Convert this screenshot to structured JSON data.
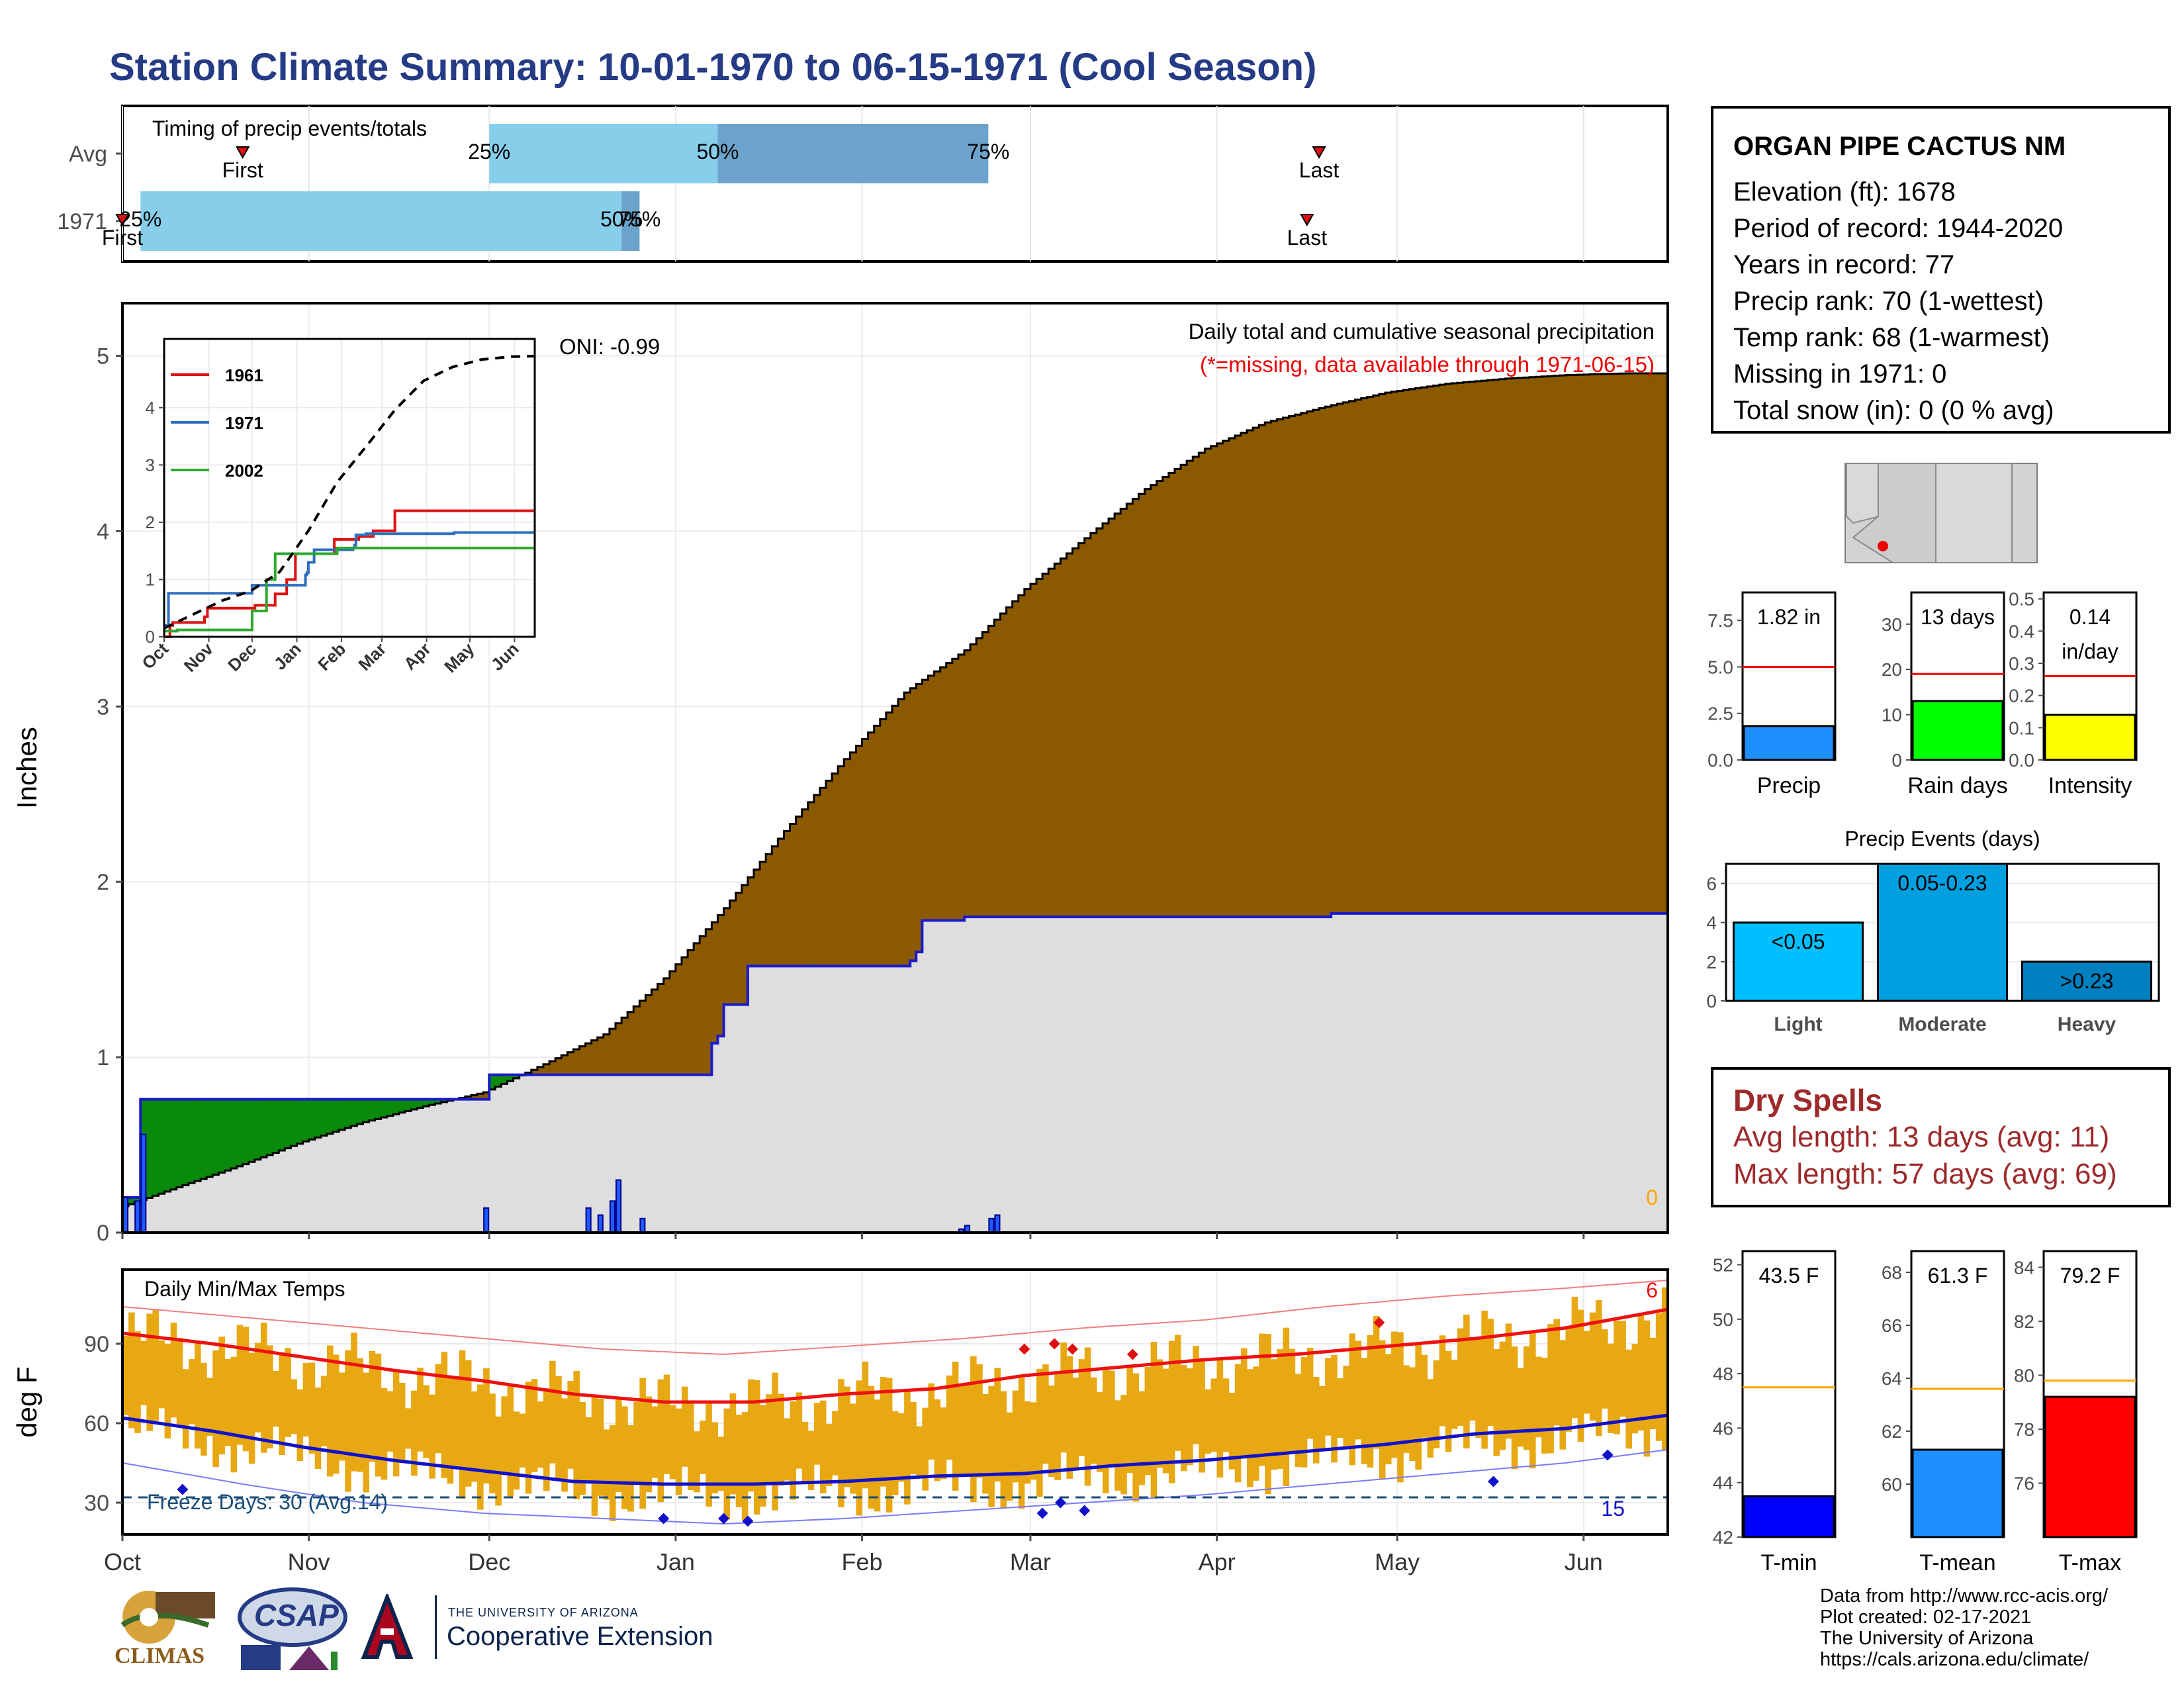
{
  "title": "Station Climate Summary: 10-01-1970 to 06-15-1971 (Cool Season)",
  "station": {
    "name": "ORGAN PIPE CACTUS NM",
    "lines": [
      "Elevation (ft): 1678",
      "Period of record: 1944-2020",
      "Years in record: 77",
      "Precip rank: 70 (1-wettest)",
      "Temp rank: 68 (1-warmest)",
      "Missing in 1971: 0",
      "Total snow (in): 0 (0 % avg)"
    ]
  },
  "dry_spells": {
    "heading": "Dry Spells",
    "avg_line": "Avg length: 13 days (avg: 11)",
    "max_line": "Max length: 57 days (avg: 69)"
  },
  "credits": [
    "Data from http://www.rcc-acis.org/",
    "Plot created: 02-17-2021",
    "The University of Arizona",
    "https://cals.arizona.edu/climate/"
  ],
  "logos": {
    "climas": "CLIMAS",
    "csap": "CSAP",
    "ua_small": "THE UNIVERSITY OF ARIZONA",
    "ua_big": "Cooperative Extension"
  },
  "colors": {
    "title": "#253b85",
    "cumulative_avg": "#8b5a00",
    "cumulative_obs": "#1a1acc",
    "deficit_green": "#0a8a0a",
    "temp_bars": "#e8a813",
    "dry_spells": "#9e2a2b",
    "timing_light": "#87ceeb",
    "timing_dark": "#6ba3cc"
  },
  "chart_data": [
    {
      "type": "bar",
      "title": "Timing of precip events/totals",
      "rows": [
        {
          "label": "Avg",
          "first": "10-21",
          "p25": "12-01",
          "p50": "01-08",
          "p75": "02-22",
          "last": "04-18",
          "marker_labels": [
            "First",
            "25%",
            "50%",
            "75%",
            "Last"
          ]
        },
        {
          "label": "1971",
          "first": "10-01",
          "p25": "10-04",
          "p50": "12-23",
          "p75": "12-26",
          "last": "04-16",
          "marker_labels": [
            "First",
            "25%",
            "50%",
            "75%",
            "Last"
          ]
        }
      ]
    },
    {
      "type": "area",
      "title": "Daily total and cumulative seasonal precipitation",
      "subtitle": "(*=missing, data available through 1971-06-15)",
      "annotation": "ONI: -0.99",
      "end_label": "0",
      "ylabel": "Inches",
      "ylim": [
        0,
        5.3
      ],
      "yticks": [
        0,
        1,
        2,
        3,
        4,
        5
      ],
      "x_ticks": [
        "Oct",
        "Nov",
        "Dec",
        "Jan",
        "Feb",
        "Mar",
        "Apr",
        "May",
        "Jun"
      ],
      "average_cumulative": {
        "days": [
          0,
          10,
          20,
          30,
          40,
          50,
          60,
          70,
          80,
          90,
          100,
          110,
          120,
          130,
          140,
          150,
          160,
          170,
          180,
          190,
          200,
          210,
          220,
          230,
          240,
          250,
          257
        ],
        "inches": [
          0.15,
          0.27,
          0.39,
          0.52,
          0.63,
          0.72,
          0.8,
          0.96,
          1.13,
          1.45,
          1.85,
          2.29,
          2.7,
          3.08,
          3.32,
          3.67,
          3.96,
          4.24,
          4.47,
          4.62,
          4.71,
          4.79,
          4.84,
          4.87,
          4.89,
          4.9,
          4.9
        ]
      },
      "observed_cumulative": {
        "days": [
          0,
          2,
          3,
          60,
          61,
          81,
          82,
          97,
          98,
          99,
          100,
          103,
          104,
          104,
          125,
          130,
          131,
          132,
          133,
          139,
          140,
          150,
          180,
          200,
          201,
          257
        ],
        "inches": [
          0.2,
          0.2,
          0.76,
          0.76,
          0.9,
          0.9,
          0.9,
          0.9,
          1.08,
          1.12,
          1.3,
          1.3,
          1.42,
          1.52,
          1.52,
          1.52,
          1.55,
          1.6,
          1.78,
          1.78,
          1.8,
          1.8,
          1.8,
          1.8,
          1.82,
          1.82
        ]
      },
      "daily_precip": {
        "days": [
          0,
          2,
          3,
          60,
          77,
          79,
          81,
          82,
          86,
          139,
          140,
          144,
          145
        ],
        "inches": [
          0.2,
          0.18,
          0.56,
          0.14,
          0.14,
          0.1,
          0.18,
          0.3,
          0.08,
          0.02,
          0.04,
          0.08,
          0.1
        ]
      }
    },
    {
      "type": "line",
      "title": "",
      "xlabel": "",
      "ylabel": "",
      "ylim": [
        0,
        5.2
      ],
      "yticks": [
        0,
        1,
        2,
        3,
        4
      ],
      "x_ticks": [
        "Oct",
        "Nov",
        "Dec",
        "Jan",
        "Feb",
        "Mar",
        "Apr",
        "May",
        "Jun"
      ],
      "series": [
        {
          "name": "1961",
          "color": "#dd1111",
          "days": [
            0,
            4,
            6,
            25,
            28,
            30,
            62,
            63,
            71,
            76,
            77,
            83,
            85,
            90,
            91,
            115,
            118,
            132,
            135,
            140,
            145,
            158,
            160,
            200,
            257
          ],
          "inches": [
            0.0,
            0.2,
            0.25,
            0.25,
            0.35,
            0.5,
            0.5,
            0.55,
            0.55,
            0.55,
            0.75,
            0.75,
            1.0,
            1.0,
            1.45,
            1.45,
            1.7,
            1.7,
            1.75,
            1.75,
            1.85,
            1.85,
            2.2,
            2.2,
            2.2
          ]
        },
        {
          "name": "1971",
          "color": "#2f6fbf",
          "days": [
            0,
            2,
            3,
            60,
            61,
            81,
            82,
            97,
            98,
            99,
            100,
            103,
            104,
            104,
            125,
            130,
            131,
            132,
            133,
            139,
            140,
            150,
            200,
            201,
            257
          ],
          "inches": [
            0.2,
            0.2,
            0.76,
            0.76,
            0.9,
            0.9,
            0.9,
            0.9,
            1.08,
            1.12,
            1.3,
            1.3,
            1.42,
            1.52,
            1.52,
            1.52,
            1.55,
            1.6,
            1.78,
            1.78,
            1.8,
            1.8,
            1.8,
            1.82,
            1.82
          ]
        },
        {
          "name": "2002",
          "color": "#2ea82e",
          "days": [
            0,
            8,
            9,
            60,
            61,
            70,
            71,
            75,
            77,
            90,
            120,
            160,
            257
          ],
          "inches": [
            0.1,
            0.1,
            0.12,
            0.12,
            0.45,
            0.45,
            1.0,
            1.0,
            1.45,
            1.45,
            1.55,
            1.55,
            1.55
          ]
        },
        {
          "name": "average",
          "color": "#000000",
          "days": [
            0,
            20,
            40,
            60,
            80,
            100,
            120,
            140,
            160,
            180,
            200,
            220,
            240,
            257
          ],
          "inches": [
            0.15,
            0.39,
            0.63,
            0.8,
            1.13,
            1.85,
            2.7,
            3.32,
            3.96,
            4.47,
            4.71,
            4.84,
            4.89,
            4.9
          ]
        }
      ]
    },
    {
      "type": "bar",
      "title": "",
      "unit_label": "1.82 in",
      "xlabel": "Precip",
      "ylim": [
        0,
        9
      ],
      "yticks": [
        "0.0",
        "2.5",
        "5.0",
        "7.5"
      ],
      "value": 1.82,
      "avg": 5.0
    },
    {
      "type": "bar",
      "unit_label": "13 days",
      "xlabel": "Rain days",
      "ylim": [
        0,
        37
      ],
      "yticks": [
        "0",
        "10",
        "20",
        "30"
      ],
      "value": 13,
      "avg": 19
    },
    {
      "type": "bar",
      "unit_label": "0.14",
      "unit_label_2": "in/day",
      "xlabel": "Intensity",
      "ylim": [
        0,
        0.52
      ],
      "yticks": [
        "0.0",
        "0.1",
        "0.2",
        "0.3",
        "0.4",
        "0.5"
      ],
      "value": 0.14,
      "avg": 0.26
    },
    {
      "type": "bar",
      "title": "Precip Events (days)",
      "categories": [
        "Light",
        "Moderate",
        "Heavy"
      ],
      "bar_labels": [
        "<0.05",
        "0.05-0.23",
        ">0.23"
      ],
      "values": [
        4,
        7,
        2
      ],
      "ylim": [
        0,
        7
      ],
      "yticks": [
        "0",
        "2",
        "4",
        "6"
      ]
    },
    {
      "type": "line",
      "title": "Daily Min/Max Temps",
      "ylabel": "deg F",
      "ylim": [
        18,
        118
      ],
      "yticks": [
        30,
        60,
        90
      ],
      "x_ticks": [
        "Oct",
        "Nov",
        "Dec",
        "Jan",
        "Feb",
        "Mar",
        "Apr",
        "May",
        "Jun"
      ],
      "annotation": "Freeze Days: 30 (Avg:14)",
      "freeze_line": 32,
      "count_high": "6",
      "count_low": "15",
      "avg_max": {
        "days": [
          0,
          15,
          30,
          45,
          60,
          75,
          90,
          105,
          120,
          135,
          150,
          165,
          180,
          195,
          210,
          225,
          240,
          257
        ],
        "temps": [
          94,
          90,
          85,
          80,
          76,
          71,
          68,
          68,
          71,
          73,
          78,
          81,
          84,
          86,
          89,
          92,
          96,
          103
        ]
      },
      "avg_min": {
        "days": [
          0,
          15,
          30,
          45,
          60,
          75,
          90,
          105,
          120,
          135,
          150,
          165,
          180,
          195,
          210,
          225,
          240,
          257
        ],
        "temps": [
          62,
          57,
          51,
          46,
          42,
          38,
          37,
          37,
          38,
          40,
          41,
          44,
          46,
          49,
          52,
          56,
          58,
          63
        ]
      },
      "record_high": {
        "days": [
          0,
          20,
          40,
          60,
          80,
          100,
          120,
          140,
          160,
          180,
          200,
          220,
          240,
          257
        ],
        "temps": [
          104,
          100,
          96,
          92,
          88,
          86,
          89,
          92,
          96,
          99,
          104,
          108,
          111,
          114
        ]
      },
      "record_low": {
        "days": [
          0,
          20,
          40,
          60,
          80,
          100,
          120,
          140,
          160,
          180,
          200,
          220,
          240,
          257
        ],
        "temps": [
          45,
          37,
          30,
          26,
          24,
          22,
          24,
          27,
          30,
          33,
          37,
          41,
          45,
          50
        ]
      }
    },
    {
      "type": "bar",
      "unit_label": "43.5 F",
      "xlabel": "T-min",
      "ylim": [
        42,
        52.5
      ],
      "yticks": [
        "42",
        "44",
        "46",
        "48",
        "50",
        "52"
      ],
      "value": 43.5,
      "avg": 47.5
    },
    {
      "type": "bar",
      "unit_label": "61.3 F",
      "xlabel": "T-mean",
      "ylim": [
        58,
        68.8
      ],
      "yticks": [
        "60",
        "62",
        "64",
        "66",
        "68"
      ],
      "value": 61.3,
      "avg": 63.6
    },
    {
      "type": "bar",
      "unit_label": "79.2 F",
      "xlabel": "T-max",
      "ylim": [
        74,
        84.6
      ],
      "yticks": [
        "76",
        "78",
        "80",
        "82",
        "84"
      ],
      "value": 79.2,
      "avg": 79.8
    }
  ]
}
